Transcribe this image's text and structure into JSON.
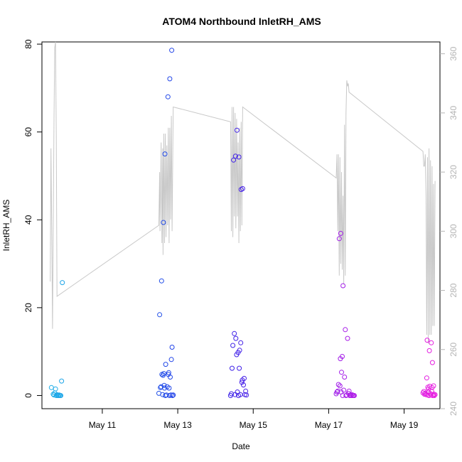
{
  "chart_data": {
    "type": "scatter",
    "title": "ATOM4 Northbound InletRH_AMS",
    "xlabel": "Date",
    "ylabel": "InletRH_AMS",
    "x_unit": "days since May 1",
    "xlim": [
      9.4,
      19.95
    ],
    "ylim": [
      -3,
      80.5
    ],
    "x_ticks": [
      {
        "value": 11,
        "label": "May 11"
      },
      {
        "value": 13,
        "label": "May 13"
      },
      {
        "value": 15,
        "label": "May 15"
      },
      {
        "value": 17,
        "label": "May 17"
      },
      {
        "value": 19,
        "label": "May 19"
      }
    ],
    "y_ticks": [
      0,
      20,
      40,
      60,
      80
    ],
    "secondary_axis": {
      "ylim": [
        240,
        364
      ],
      "ticks": [
        240,
        260,
        280,
        300,
        320,
        340,
        360
      ],
      "color": "#b4b4b4"
    },
    "grid": false,
    "legend": "none",
    "colors": {
      "line": "#c8c8c8",
      "axis_right": "#b4b4b4",
      "gradient": [
        "#1eaee8",
        "#1f6ee8",
        "#2323e8",
        "#6a1ee8",
        "#b41ee8",
        "#e81ee0"
      ]
    },
    "points": [
      [
        9.65,
        1.8
      ],
      [
        9.7,
        0.3
      ],
      [
        9.72,
        0.1
      ],
      [
        9.74,
        0.6
      ],
      [
        9.76,
        1.5
      ],
      [
        9.78,
        0.0
      ],
      [
        9.8,
        0.2
      ],
      [
        9.82,
        0.0
      ],
      [
        9.84,
        0.0
      ],
      [
        9.86,
        0.1
      ],
      [
        9.88,
        0.0
      ],
      [
        9.9,
        0.0
      ],
      [
        9.92,
        3.3
      ],
      [
        9.94,
        25.7
      ],
      [
        12.5,
        0.5
      ],
      [
        12.52,
        18.4
      ],
      [
        12.54,
        1.8
      ],
      [
        12.56,
        2.0
      ],
      [
        12.57,
        26.1
      ],
      [
        12.58,
        4.8
      ],
      [
        12.6,
        0.2
      ],
      [
        12.61,
        4.6
      ],
      [
        12.62,
        39.4
      ],
      [
        12.63,
        5.0
      ],
      [
        12.64,
        2.3
      ],
      [
        12.65,
        1.7
      ],
      [
        12.66,
        55.0
      ],
      [
        12.67,
        0.0
      ],
      [
        12.68,
        7.1
      ],
      [
        12.7,
        0.1
      ],
      [
        12.72,
        2.0
      ],
      [
        12.74,
        68.0
      ],
      [
        12.75,
        4.8
      ],
      [
        12.76,
        5.2
      ],
      [
        12.77,
        1.7
      ],
      [
        12.78,
        0.0
      ],
      [
        12.79,
        72.1
      ],
      [
        12.8,
        4.2
      ],
      [
        12.82,
        0.1
      ],
      [
        12.83,
        8.2
      ],
      [
        12.84,
        78.6
      ],
      [
        12.85,
        11.0
      ],
      [
        12.86,
        0.0
      ],
      [
        12.88,
        0.1
      ],
      [
        14.4,
        0.0
      ],
      [
        14.42,
        0.4
      ],
      [
        14.44,
        6.2
      ],
      [
        14.46,
        11.4
      ],
      [
        14.48,
        53.6
      ],
      [
        14.5,
        14.1
      ],
      [
        14.52,
        0.2
      ],
      [
        14.53,
        54.5
      ],
      [
        14.54,
        13.0
      ],
      [
        14.56,
        9.3
      ],
      [
        14.57,
        60.4
      ],
      [
        14.58,
        0.8
      ],
      [
        14.6,
        9.8
      ],
      [
        14.61,
        0.0
      ],
      [
        14.62,
        54.3
      ],
      [
        14.63,
        6.2
      ],
      [
        14.64,
        10.3
      ],
      [
        14.66,
        0.2
      ],
      [
        14.67,
        12.0
      ],
      [
        14.68,
        46.9
      ],
      [
        14.7,
        3.0
      ],
      [
        14.71,
        3.5
      ],
      [
        14.72,
        47.1
      ],
      [
        14.74,
        2.4
      ],
      [
        14.76,
        3.9
      ],
      [
        14.78,
        0.2
      ],
      [
        14.8,
        1.0
      ],
      [
        14.82,
        0.1
      ],
      [
        17.2,
        0.4
      ],
      [
        17.22,
        0.8
      ],
      [
        17.24,
        1.0
      ],
      [
        17.26,
        2.5
      ],
      [
        17.28,
        35.7
      ],
      [
        17.3,
        2.2
      ],
      [
        17.31,
        8.4
      ],
      [
        17.32,
        36.9
      ],
      [
        17.33,
        0.8
      ],
      [
        17.34,
        5.3
      ],
      [
        17.36,
        8.9
      ],
      [
        17.37,
        0.0
      ],
      [
        17.38,
        25.0
      ],
      [
        17.4,
        1.2
      ],
      [
        17.42,
        4.2
      ],
      [
        17.44,
        15.0
      ],
      [
        17.46,
        0.0
      ],
      [
        17.48,
        0.1
      ],
      [
        17.5,
        13.0
      ],
      [
        17.52,
        0.5
      ],
      [
        17.54,
        1.0
      ],
      [
        17.56,
        0.0
      ],
      [
        17.58,
        0.1
      ],
      [
        17.6,
        0.0
      ],
      [
        17.62,
        0.2
      ],
      [
        17.64,
        0.0
      ],
      [
        17.66,
        0.0
      ],
      [
        17.68,
        0.0
      ],
      [
        19.5,
        0.6
      ],
      [
        19.52,
        0.9
      ],
      [
        19.54,
        0.3
      ],
      [
        19.56,
        0.5
      ],
      [
        19.58,
        0.2
      ],
      [
        19.6,
        4.0
      ],
      [
        19.61,
        12.6
      ],
      [
        19.62,
        0.1
      ],
      [
        19.63,
        1.9
      ],
      [
        19.64,
        1.5
      ],
      [
        19.65,
        0.8
      ],
      [
        19.66,
        0.0
      ],
      [
        19.67,
        10.2
      ],
      [
        19.68,
        2.1
      ],
      [
        19.7,
        0.4
      ],
      [
        19.71,
        0.1
      ],
      [
        19.72,
        12.0
      ],
      [
        19.73,
        1.0
      ],
      [
        19.74,
        1.8
      ],
      [
        19.75,
        7.5
      ],
      [
        19.76,
        0.0
      ],
      [
        19.77,
        0.0
      ],
      [
        19.78,
        2.2
      ],
      [
        19.79,
        0.3
      ],
      [
        19.8,
        0.0
      ],
      [
        19.82,
        0.2
      ]
    ],
    "secondary_line": [
      [
        9.62,
        283
      ],
      [
        9.64,
        328
      ],
      [
        9.66,
        300
      ],
      [
        9.68,
        267
      ],
      [
        9.7,
        302
      ],
      [
        9.72,
        338
      ],
      [
        9.74,
        362
      ],
      [
        9.76,
        364
      ],
      [
        9.78,
        332
      ],
      [
        9.8,
        278
      ],
      [
        12.5,
        302
      ],
      [
        12.52,
        320
      ],
      [
        12.53,
        300
      ],
      [
        12.54,
        310
      ],
      [
        12.56,
        330
      ],
      [
        12.58,
        296
      ],
      [
        12.6,
        328
      ],
      [
        12.61,
        292
      ],
      [
        12.63,
        333
      ],
      [
        12.65,
        296
      ],
      [
        12.67,
        333
      ],
      [
        12.69,
        298
      ],
      [
        12.71,
        329
      ],
      [
        12.73,
        302
      ],
      [
        12.75,
        335
      ],
      [
        12.77,
        296
      ],
      [
        12.79,
        335
      ],
      [
        12.81,
        304
      ],
      [
        12.83,
        339
      ],
      [
        12.85,
        300
      ],
      [
        12.88,
        342
      ],
      [
        14.4,
        337
      ],
      [
        14.42,
        300
      ],
      [
        14.44,
        342
      ],
      [
        14.46,
        298
      ],
      [
        14.48,
        342
      ],
      [
        14.5,
        305
      ],
      [
        14.52,
        340
      ],
      [
        14.54,
        301
      ],
      [
        14.56,
        338
      ],
      [
        14.58,
        305
      ],
      [
        14.6,
        330
      ],
      [
        14.62,
        296
      ],
      [
        14.64,
        335
      ],
      [
        14.66,
        300
      ],
      [
        14.68,
        337
      ],
      [
        14.7,
        302
      ],
      [
        14.72,
        342
      ],
      [
        17.2,
        318
      ],
      [
        17.22,
        326
      ],
      [
        17.24,
        300
      ],
      [
        17.26,
        326
      ],
      [
        17.28,
        285
      ],
      [
        17.3,
        325
      ],
      [
        17.32,
        289
      ],
      [
        17.34,
        320
      ],
      [
        17.36,
        287
      ],
      [
        17.38,
        312
      ],
      [
        17.4,
        282
      ],
      [
        17.42,
        336
      ],
      [
        17.44,
        285
      ],
      [
        17.46,
        340
      ],
      [
        17.48,
        351
      ],
      [
        17.5,
        349
      ],
      [
        17.52,
        350
      ],
      [
        17.54,
        347
      ],
      [
        19.5,
        327
      ],
      [
        19.52,
        322
      ],
      [
        19.54,
        322
      ],
      [
        19.56,
        326
      ],
      [
        19.58,
        312
      ],
      [
        19.6,
        265
      ],
      [
        19.62,
        325
      ],
      [
        19.64,
        262
      ],
      [
        19.66,
        328
      ],
      [
        19.68,
        265
      ],
      [
        19.7,
        324
      ],
      [
        19.72,
        265
      ],
      [
        19.74,
        322
      ],
      [
        19.76,
        268
      ],
      [
        19.78,
        316
      ],
      [
        19.8,
        268
      ],
      [
        19.82,
        317
      ]
    ]
  }
}
